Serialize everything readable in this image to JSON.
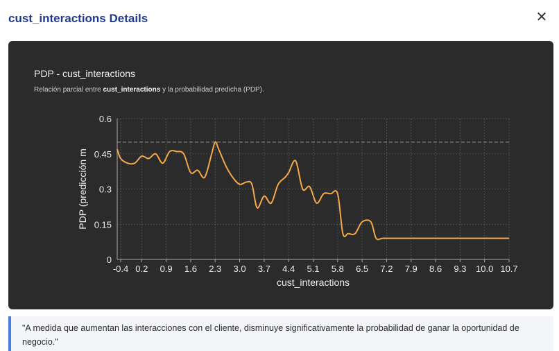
{
  "dialog": {
    "title": "cust_interactions Details",
    "close_icon": "close-icon"
  },
  "chart_header": {
    "title": "PDP - cust_interactions",
    "subtitle_prefix": "Relación parcial entre ",
    "subtitle_bold": "cust_interactions",
    "subtitle_suffix": " y la probabilidad predicha (PDP)."
  },
  "chart_data": {
    "type": "line",
    "xlabel": "cust_interactions",
    "ylabel": "PDP (predicción m",
    "xlim": [
      -0.5,
      10.7
    ],
    "ylim": [
      0,
      0.6
    ],
    "x_ticks": [
      "-0.4",
      "0.2",
      "0.9",
      "1.6",
      "2.3",
      "3.0",
      "3.7",
      "4.4",
      "5.1",
      "5.8",
      "6.5",
      "7.2",
      "7.9",
      "8.6",
      "9.3",
      "10.0",
      "10.7"
    ],
    "y_ticks": [
      "0",
      "0.15",
      "0.3",
      "0.45",
      "0.6"
    ],
    "reference_line": 0.5,
    "grid": true,
    "series": [
      {
        "color": "#f5a94a",
        "x": [
          -0.5,
          -0.4,
          -0.2,
          0.0,
          0.2,
          0.4,
          0.6,
          0.8,
          1.0,
          1.2,
          1.4,
          1.6,
          1.8,
          2.0,
          2.2,
          2.3,
          2.4,
          2.6,
          2.8,
          3.0,
          3.2,
          3.35,
          3.5,
          3.7,
          3.9,
          4.1,
          4.3,
          4.4,
          4.6,
          4.8,
          5.0,
          5.2,
          5.4,
          5.6,
          5.8,
          5.95,
          6.1,
          6.3,
          6.5,
          6.75,
          6.9,
          7.1,
          7.5,
          8.0,
          9.0,
          10.0,
          10.7
        ],
        "y": [
          0.47,
          0.43,
          0.41,
          0.41,
          0.44,
          0.43,
          0.45,
          0.41,
          0.46,
          0.46,
          0.45,
          0.37,
          0.38,
          0.35,
          0.45,
          0.5,
          0.47,
          0.4,
          0.35,
          0.32,
          0.33,
          0.32,
          0.22,
          0.27,
          0.24,
          0.32,
          0.35,
          0.37,
          0.42,
          0.3,
          0.31,
          0.24,
          0.28,
          0.28,
          0.28,
          0.11,
          0.11,
          0.11,
          0.16,
          0.16,
          0.09,
          0.09,
          0.09,
          0.09,
          0.09,
          0.09,
          0.09
        ]
      }
    ]
  },
  "note": {
    "text": "\"A medida que aumentan las interacciones con el cliente, disminuye significativamente la probabilidad de ganar la oportunidad de negocio.\""
  }
}
